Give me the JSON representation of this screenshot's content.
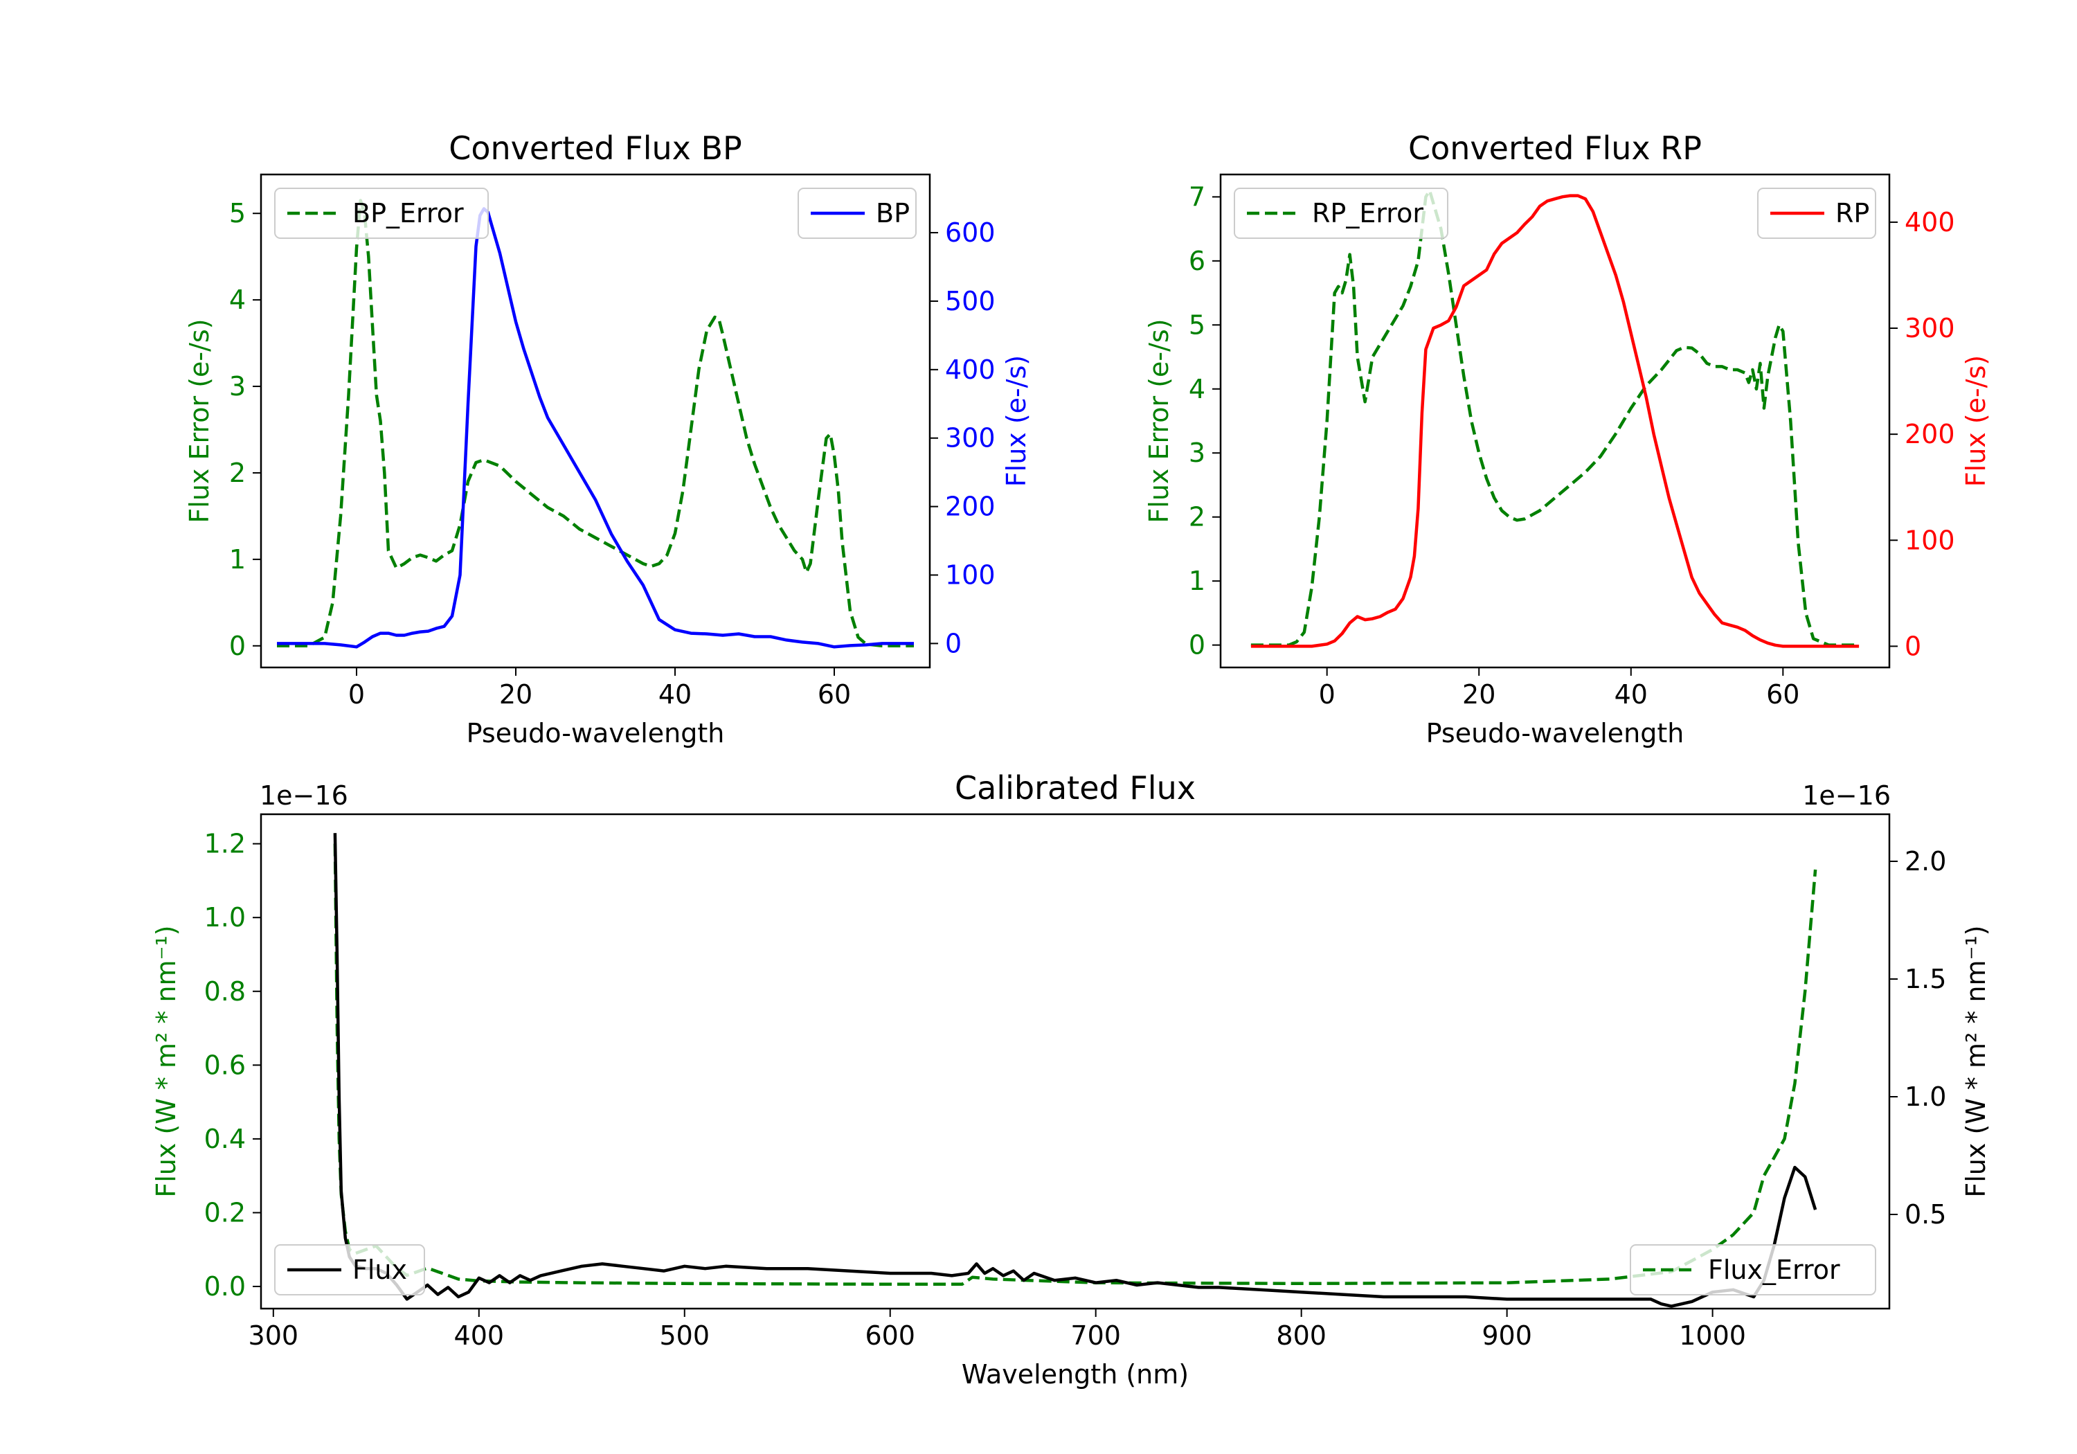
{
  "chart_data": [
    {
      "type": "line",
      "title": "Converted Flux BP",
      "xlabel": "Pseudo-wavelength",
      "ylabel_left": "Flux Error (e-/s)",
      "ylabel_right": "Flux (e-/s)",
      "xlim": [
        -12,
        72
      ],
      "ylim_left": [
        -0.25,
        5.45
      ],
      "ylim_right": [
        -35,
        685
      ],
      "xticks": [
        0,
        20,
        40,
        60
      ],
      "yticks_left": [
        0,
        1,
        2,
        3,
        4,
        5
      ],
      "yticks_right": [
        0,
        100,
        200,
        300,
        400,
        500,
        600
      ],
      "left_color": "#008000",
      "right_color": "#0000ff",
      "series": [
        {
          "name": "BP_Error",
          "axis": "left",
          "color": "#008000",
          "style": "dashed",
          "x": [
            -10,
            -6,
            -4,
            -3,
            -2,
            -1,
            0,
            0.5,
            1,
            1.5,
            2,
            2.5,
            3,
            3.5,
            4,
            5,
            6,
            7,
            8,
            9,
            10,
            11,
            12,
            13,
            14,
            15,
            16,
            18,
            20,
            22,
            24,
            26,
            28,
            30,
            32,
            34,
            36,
            37,
            38,
            39,
            40,
            41,
            42,
            43,
            44,
            45,
            45.5,
            46,
            47,
            48,
            49,
            50,
            51,
            52,
            53,
            54,
            55,
            56,
            56.5,
            57,
            58,
            59,
            59.5,
            60,
            60.5,
            61,
            62,
            63,
            64,
            66,
            68,
            70
          ],
          "y": [
            0,
            0,
            0.1,
            0.5,
            1.5,
            2.9,
            4.6,
            5.15,
            5.0,
            4.5,
            3.7,
            2.9,
            2.6,
            2.0,
            1.1,
            0.9,
            0.95,
            1.02,
            1.05,
            1.02,
            0.98,
            1.05,
            1.1,
            1.4,
            1.9,
            2.12,
            2.15,
            2.08,
            1.9,
            1.75,
            1.6,
            1.5,
            1.35,
            1.25,
            1.15,
            1.05,
            0.95,
            0.92,
            0.95,
            1.05,
            1.3,
            1.8,
            2.5,
            3.2,
            3.65,
            3.8,
            3.78,
            3.6,
            3.2,
            2.8,
            2.4,
            2.1,
            1.85,
            1.6,
            1.4,
            1.25,
            1.1,
            1.0,
            0.85,
            0.95,
            1.7,
            2.4,
            2.45,
            2.2,
            1.8,
            1.2,
            0.4,
            0.1,
            0.02,
            0,
            0,
            0
          ]
        },
        {
          "name": "BP",
          "axis": "right",
          "color": "#0000ff",
          "style": "solid",
          "x": [
            -10,
            -4,
            -2,
            0,
            1,
            2,
            3,
            4,
            5,
            6,
            7,
            8,
            9,
            10,
            11,
            12,
            13,
            14,
            15,
            15.5,
            16,
            16.5,
            17,
            18,
            19,
            20,
            21,
            22,
            23,
            24,
            26,
            28,
            30,
            32,
            34,
            36,
            37,
            38,
            40,
            42,
            44,
            46,
            48,
            50,
            52,
            54,
            56,
            58,
            60,
            62,
            64,
            66,
            68,
            70
          ],
          "y": [
            0,
            0,
            -2,
            -5,
            2,
            10,
            15,
            15,
            12,
            12,
            15,
            17,
            18,
            22,
            25,
            40,
            100,
            350,
            580,
            625,
            635,
            630,
            610,
            570,
            520,
            470,
            430,
            395,
            360,
            330,
            290,
            250,
            210,
            160,
            120,
            85,
            60,
            35,
            20,
            15,
            14,
            12,
            14,
            10,
            10,
            5,
            2,
            0,
            -5,
            -3,
            -2,
            0,
            0,
            0
          ]
        }
      ],
      "legend": [
        {
          "label": "BP_Error",
          "placement": "upper-left"
        },
        {
          "label": "BP",
          "placement": "upper-right"
        }
      ]
    },
    {
      "type": "line",
      "title": "Converted Flux RP",
      "xlabel": "Pseudo-wavelength",
      "ylabel_left": "Flux Error (e-/s)",
      "ylabel_right": "Flux (e-/s)",
      "xlim": [
        -14,
        74
      ],
      "ylim_left": [
        -0.35,
        7.35
      ],
      "ylim_right": [
        -20,
        445
      ],
      "xticks": [
        0,
        20,
        40,
        60
      ],
      "yticks_left": [
        0,
        1,
        2,
        3,
        4,
        5,
        6,
        7
      ],
      "yticks_right": [
        0,
        100,
        200,
        300,
        400
      ],
      "left_color": "#008000",
      "right_color": "#ff0000",
      "series": [
        {
          "name": "RP_Error",
          "axis": "left",
          "color": "#008000",
          "style": "dashed",
          "x": [
            -10,
            -5,
            -4,
            -3,
            -2,
            -1,
            0,
            1,
            1.5,
            2,
            2.5,
            3,
            3.5,
            4,
            5,
            6,
            7,
            8,
            9,
            10,
            11,
            12,
            12.5,
            13,
            13.5,
            14,
            15,
            16,
            17,
            18,
            19,
            20,
            21,
            22,
            23,
            24,
            25,
            26,
            28,
            30,
            32,
            34,
            36,
            38,
            40,
            42,
            44,
            45,
            46,
            47,
            48,
            49,
            50,
            51,
            52,
            53,
            54,
            55,
            55.5,
            56,
            56.5,
            57,
            57.5,
            58,
            59,
            59.5,
            60,
            61,
            62,
            63,
            64,
            66,
            68,
            70
          ],
          "y": [
            0,
            0,
            0.05,
            0.2,
            0.9,
            2.0,
            3.5,
            5.5,
            5.6,
            5.5,
            5.7,
            6.1,
            5.6,
            4.5,
            3.8,
            4.5,
            4.7,
            4.9,
            5.1,
            5.3,
            5.6,
            6.0,
            6.5,
            7.0,
            7.1,
            6.9,
            6.5,
            5.8,
            5.0,
            4.2,
            3.5,
            3.0,
            2.6,
            2.3,
            2.1,
            2.0,
            1.95,
            1.97,
            2.1,
            2.3,
            2.5,
            2.7,
            2.95,
            3.3,
            3.7,
            4.05,
            4.3,
            4.45,
            4.6,
            4.65,
            4.64,
            4.55,
            4.4,
            4.35,
            4.35,
            4.3,
            4.3,
            4.25,
            4.1,
            4.3,
            4.0,
            4.4,
            3.7,
            4.2,
            4.8,
            5.0,
            4.9,
            3.5,
            1.6,
            0.5,
            0.1,
            0,
            0,
            0
          ]
        },
        {
          "name": "RP",
          "axis": "right",
          "color": "#ff0000",
          "style": "solid",
          "x": [
            -10,
            -4,
            -2,
            0,
            1,
            2,
            3,
            4,
            5,
            6,
            7,
            8,
            9,
            10,
            11,
            11.5,
            12,
            12.5,
            13,
            14,
            15,
            16,
            17,
            18,
            19,
            20,
            21,
            22,
            23,
            24,
            25,
            26,
            27,
            28,
            29,
            30,
            31,
            32,
            33,
            34,
            35,
            36,
            37,
            38,
            39,
            40,
            41,
            42,
            43,
            44,
            45,
            46,
            47,
            48,
            49,
            50,
            51,
            52,
            53,
            54,
            55,
            56,
            57,
            58,
            59,
            60,
            61,
            62,
            64,
            66,
            68,
            70
          ],
          "y": [
            0,
            0,
            0,
            2,
            5,
            12,
            22,
            28,
            25,
            26,
            28,
            32,
            35,
            45,
            65,
            85,
            130,
            220,
            280,
            300,
            303,
            307,
            320,
            340,
            345,
            350,
            355,
            370,
            380,
            385,
            390,
            398,
            405,
            415,
            420,
            422,
            424,
            425,
            425,
            422,
            410,
            390,
            370,
            350,
            325,
            295,
            265,
            235,
            200,
            170,
            140,
            115,
            90,
            65,
            50,
            40,
            30,
            22,
            20,
            18,
            15,
            10,
            6,
            3,
            1,
            0,
            0,
            0,
            0,
            0,
            0,
            0
          ]
        }
      ],
      "legend": [
        {
          "label": "RP_Error",
          "placement": "upper-left"
        },
        {
          "label": "RP",
          "placement": "upper-right"
        }
      ]
    },
    {
      "type": "line",
      "title": "Calibrated Flux",
      "xlabel": "Wavelength (nm)",
      "ylabel_left": "Flux (W * m² * nm⁻¹)",
      "ylabel_right": "Flux (W * m² * nm⁻¹)",
      "offset_left": "1e−16",
      "offset_right": "1e−16",
      "xlim": [
        294,
        1086
      ],
      "ylim_left": [
        -0.06,
        1.28
      ],
      "ylim_right": [
        0.1,
        2.2
      ],
      "xticks": [
        300,
        400,
        500,
        600,
        700,
        800,
        900,
        1000
      ],
      "yticks_left": [
        0.0,
        0.2,
        0.4,
        0.6,
        0.8,
        1.0,
        1.2
      ],
      "yticks_left_labels": [
        "0.0",
        "0.2",
        "0.4",
        "0.6",
        "0.8",
        "1.0",
        "1.2"
      ],
      "yticks_right": [
        0.5,
        1.0,
        1.5,
        2.0
      ],
      "yticks_right_labels": [
        "0.5",
        "1.0",
        "1.5",
        "2.0"
      ],
      "left_color": "#008000",
      "right_color": "#000000",
      "series": [
        {
          "name": "Flux_Error",
          "axis": "left",
          "color": "#008000",
          "style": "dashed",
          "x": [
            330,
            331,
            332,
            333,
            335,
            337,
            340,
            345,
            350,
            355,
            360,
            365,
            370,
            375,
            380,
            390,
            400,
            420,
            450,
            500,
            600,
            635,
            640,
            650,
            700,
            800,
            900,
            950,
            980,
            1000,
            1010,
            1020,
            1025,
            1030,
            1035,
            1040,
            1045,
            1050
          ],
          "y": [
            1.2,
            0.7,
            0.4,
            0.25,
            0.15,
            0.1,
            0.09,
            0.1,
            0.11,
            0.08,
            0.05,
            0.03,
            0.04,
            0.05,
            0.04,
            0.02,
            0.015,
            0.012,
            0.01,
            0.008,
            0.006,
            0.006,
            0.025,
            0.02,
            0.01,
            0.008,
            0.01,
            0.02,
            0.04,
            0.1,
            0.14,
            0.2,
            0.3,
            0.35,
            0.4,
            0.55,
            0.8,
            1.13
          ]
        },
        {
          "name": "Flux",
          "axis": "right",
          "color": "#000000",
          "style": "solid",
          "x": [
            330,
            331,
            332,
            333,
            335,
            337,
            340,
            345,
            350,
            355,
            360,
            365,
            370,
            375,
            380,
            385,
            390,
            395,
            400,
            405,
            410,
            415,
            420,
            425,
            430,
            440,
            450,
            460,
            470,
            480,
            490,
            500,
            510,
            520,
            540,
            560,
            580,
            600,
            620,
            630,
            638,
            642,
            646,
            650,
            655,
            660,
            665,
            670,
            680,
            690,
            700,
            710,
            720,
            730,
            740,
            750,
            760,
            780,
            800,
            820,
            840,
            860,
            880,
            900,
            920,
            940,
            960,
            970,
            975,
            980,
            985,
            990,
            1000,
            1010,
            1020,
            1025,
            1030,
            1035,
            1040,
            1045,
            1050
          ],
          "y": [
            2.12,
            1.6,
            1.0,
            0.6,
            0.4,
            0.32,
            0.28,
            0.27,
            0.27,
            0.25,
            0.2,
            0.14,
            0.17,
            0.2,
            0.16,
            0.19,
            0.15,
            0.17,
            0.23,
            0.21,
            0.24,
            0.21,
            0.24,
            0.22,
            0.24,
            0.26,
            0.28,
            0.29,
            0.28,
            0.27,
            0.26,
            0.28,
            0.27,
            0.28,
            0.27,
            0.27,
            0.26,
            0.25,
            0.25,
            0.24,
            0.25,
            0.29,
            0.25,
            0.27,
            0.24,
            0.26,
            0.22,
            0.25,
            0.22,
            0.23,
            0.21,
            0.22,
            0.2,
            0.21,
            0.2,
            0.19,
            0.19,
            0.18,
            0.17,
            0.16,
            0.15,
            0.15,
            0.15,
            0.14,
            0.14,
            0.14,
            0.14,
            0.14,
            0.12,
            0.11,
            0.12,
            0.13,
            0.17,
            0.18,
            0.15,
            0.22,
            0.37,
            0.57,
            0.7,
            0.66,
            0.52
          ]
        }
      ],
      "legend": [
        {
          "label": "Flux",
          "placement": "lower-left"
        },
        {
          "label": "Flux_Error",
          "placement": "lower-right"
        }
      ]
    }
  ]
}
